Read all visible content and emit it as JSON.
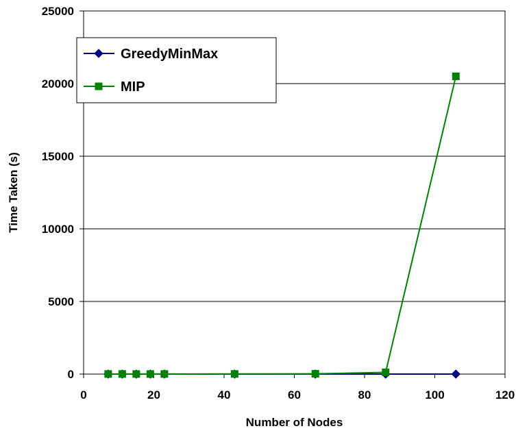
{
  "chart_data": {
    "type": "line",
    "title": "",
    "xlabel": "Number of Nodes",
    "ylabel": "Time Taken (s)",
    "xlim": [
      0,
      120
    ],
    "ylim": [
      0,
      25000
    ],
    "x_ticks": [
      "0",
      "20",
      "40",
      "60",
      "80",
      "100",
      "120"
    ],
    "y_ticks": [
      "0",
      "5000",
      "10000",
      "15000",
      "20000",
      "25000"
    ],
    "grid": "horizontal",
    "legend_position": "top-left",
    "series": [
      {
        "name": "GreedyMinMax",
        "color": "#000080",
        "marker": "diamond",
        "x": [
          7,
          11,
          15,
          19,
          23,
          43,
          66,
          86,
          106
        ],
        "y": [
          0,
          0,
          0,
          0,
          0,
          0,
          0,
          0,
          0
        ]
      },
      {
        "name": "MIP",
        "color": "#008000",
        "marker": "square",
        "x": [
          7,
          11,
          15,
          19,
          23,
          43,
          66,
          86,
          106
        ],
        "y": [
          5,
          5,
          5,
          5,
          5,
          10,
          20,
          120,
          20500
        ]
      }
    ]
  }
}
